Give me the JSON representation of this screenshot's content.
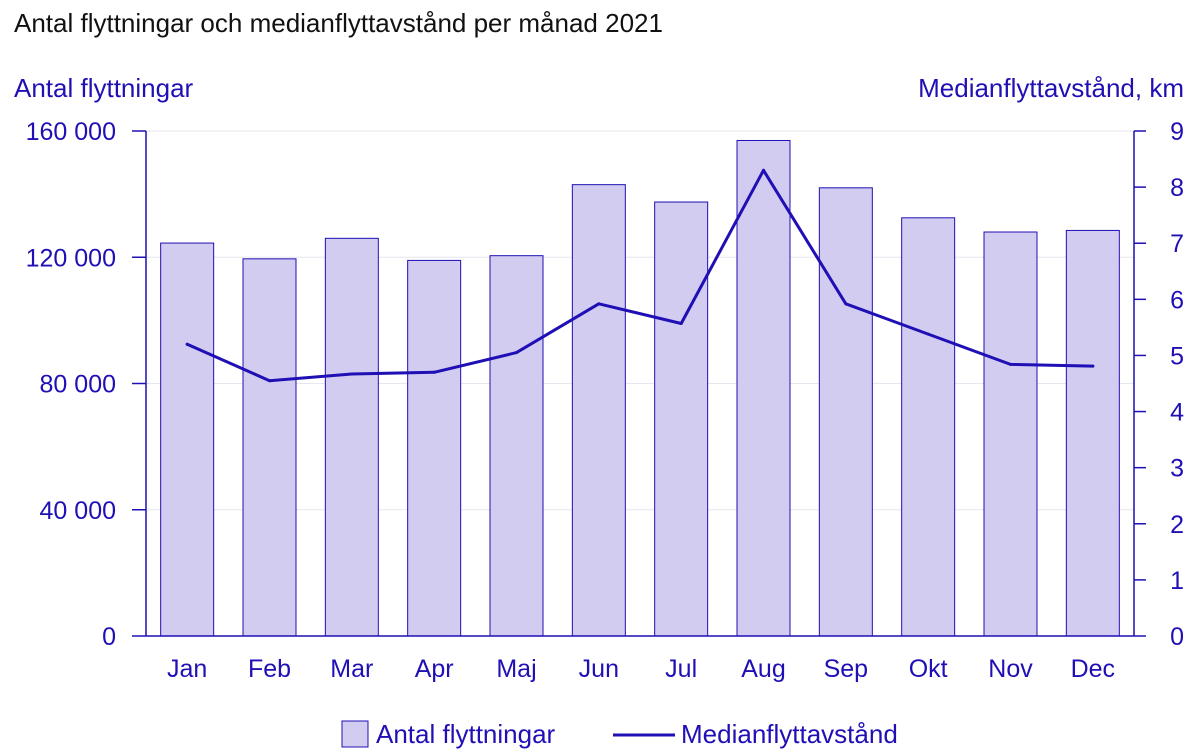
{
  "title": "Antal flyttningar och medianflyttavstånd per månad 2021",
  "colors": {
    "accent": "#1f0fb5",
    "bar_fill": "#d1ccf0",
    "bar_stroke": "#1f0fb5",
    "grid": "#e6e6ee",
    "title_text": "#111111"
  },
  "chart_data": {
    "type": "bar",
    "title": "Antal flyttningar och medianflyttavstånd per månad 2021",
    "categories": [
      "Jan",
      "Feb",
      "Mar",
      "Apr",
      "Maj",
      "Jun",
      "Jul",
      "Aug",
      "Sep",
      "Okt",
      "Nov",
      "Dec"
    ],
    "ylabel_left": "Antal flyttningar",
    "ylabel_right": "Medianflyttavstånd, km",
    "ylim_left": [
      0,
      160000
    ],
    "ylim_right": [
      0,
      9
    ],
    "yticks_left": [
      0,
      40000,
      80000,
      120000,
      160000
    ],
    "ytick_labels_left": [
      "0",
      "40 000",
      "80 000",
      "120 000",
      "160 000"
    ],
    "yticks_right": [
      0,
      1,
      2,
      3,
      4,
      5,
      6,
      7,
      8,
      9
    ],
    "grid": true,
    "legend_position": "bottom",
    "series": [
      {
        "name": "Antal flyttningar",
        "type": "bar",
        "axis": "left",
        "values": [
          124500,
          119500,
          126000,
          119000,
          120500,
          143000,
          137500,
          157000,
          142000,
          132500,
          128000,
          128500
        ]
      },
      {
        "name": "Medianflyttavstånd",
        "type": "line",
        "axis": "right",
        "values": [
          5.2,
          4.55,
          4.67,
          4.7,
          5.05,
          5.92,
          5.57,
          8.3,
          5.92,
          5.38,
          4.84,
          4.81
        ]
      }
    ]
  }
}
